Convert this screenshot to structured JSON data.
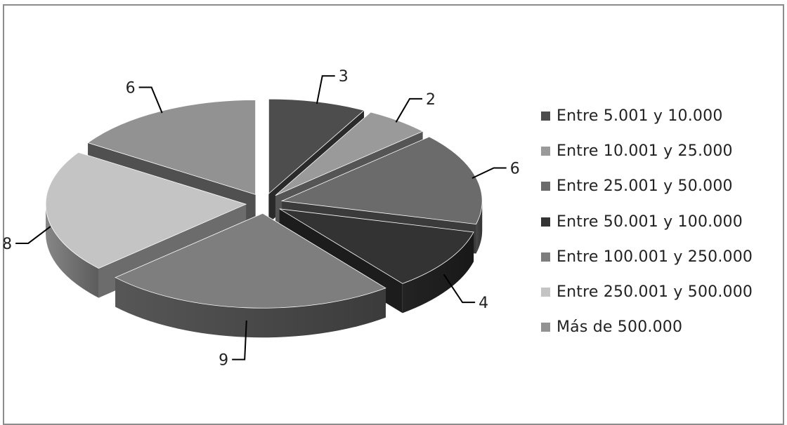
{
  "chart_data": {
    "type": "pie",
    "style": "3d-exploded",
    "slices": [
      {
        "label": "Entre 5.001 y 10.000",
        "value": 3,
        "color": "#4d4d4d",
        "value_label": "3"
      },
      {
        "label": "Entre 10.001 y 25.000",
        "value": 2,
        "color": "#9a9a9a",
        "value_label": "2"
      },
      {
        "label": "Entre 25.001 y 50.000",
        "value": 6,
        "color": "#6b6b6b",
        "value_label": "6"
      },
      {
        "label": "Entre 50.001 y 100.000",
        "value": 4,
        "color": "#333333",
        "value_label": "4"
      },
      {
        "label": "Entre 100.001 y 250.000",
        "value": 9,
        "color": "#7e7e7e",
        "value_label": "9"
      },
      {
        "label": "Entre 250.001 y 500.000",
        "value": 8,
        "color": "#c4c4c4",
        "value_label": "8"
      },
      {
        "label": "Más de 500.000",
        "value": 6,
        "color": "#929292",
        "value_label": "6"
      }
    ],
    "legend_position": "right"
  }
}
